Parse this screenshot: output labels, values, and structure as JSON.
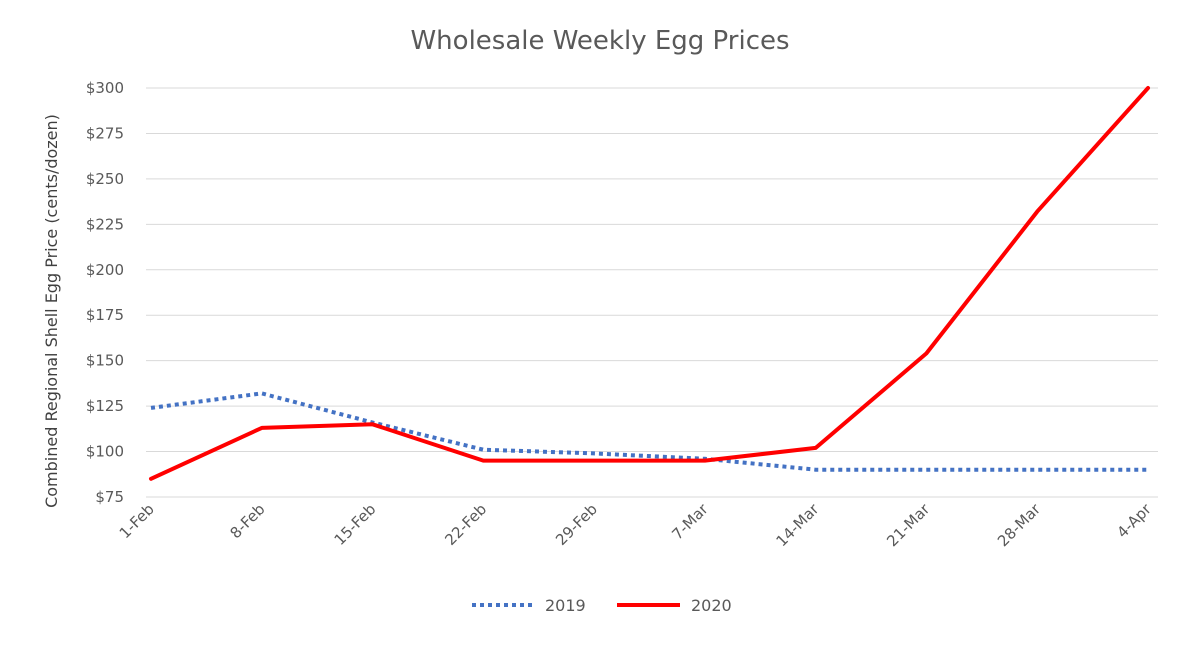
{
  "chart_data": {
    "type": "line",
    "title": "Wholesale Weekly Egg Prices",
    "xlabel": "",
    "ylabel": "Combined Regional Shell Egg Price (cents/dozen)",
    "categories": [
      "1-Feb",
      "8-Feb",
      "15-Feb",
      "22-Feb",
      "29-Feb",
      "7-Mar",
      "14-Mar",
      "21-Mar",
      "28-Mar",
      "4-Apr"
    ],
    "ylim": [
      75,
      300
    ],
    "yticks": [
      "$75",
      "$100",
      "$125",
      "$150",
      "$175",
      "$200",
      "$225",
      "$250",
      "$275",
      "$300"
    ],
    "grid": true,
    "legend_position": "bottom",
    "series": [
      {
        "name": "2019",
        "values": [
          124,
          132,
          116,
          101,
          99,
          96,
          90,
          90,
          90,
          90
        ],
        "color": "#4472c4",
        "style": "dotted"
      },
      {
        "name": "2020",
        "values": [
          85,
          113,
          115,
          95,
          95,
          95,
          102,
          154,
          232,
          300
        ],
        "color": "#ff0000",
        "style": "solid"
      }
    ]
  }
}
